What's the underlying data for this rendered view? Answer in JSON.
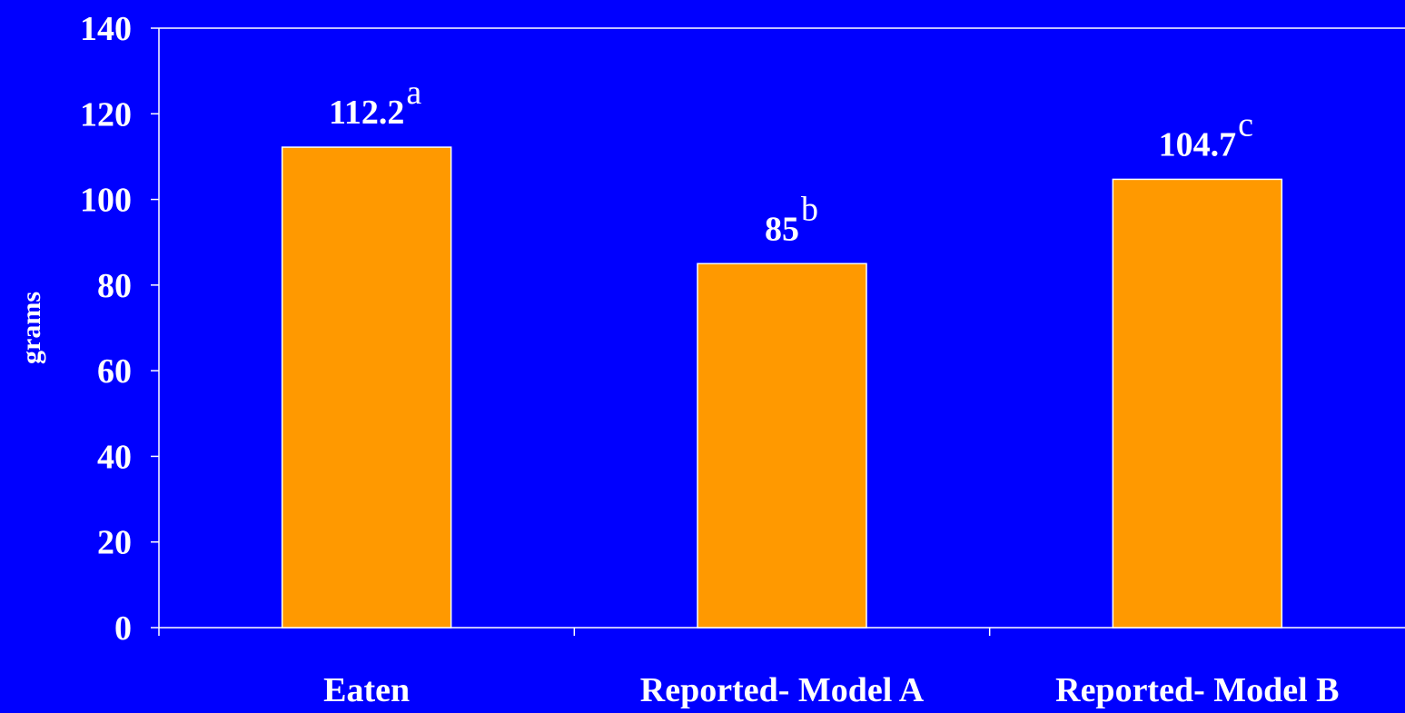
{
  "colors": {
    "background": "#0000FF",
    "bar_fill": "#FF9900",
    "bar_stroke": "#FFFFFF",
    "axis": "#FFFFFF",
    "text": "#FFFFFF"
  },
  "chart_data": {
    "type": "bar",
    "title": "",
    "xlabel": "",
    "ylabel": "grams",
    "ylim": [
      0,
      140
    ],
    "yticks": [
      0,
      20,
      40,
      60,
      80,
      100,
      120,
      140
    ],
    "grid": false,
    "legend": "none",
    "categories": [
      "Eaten",
      "Reported- Model A",
      "Reported- Model B"
    ],
    "series": [
      {
        "values": [
          112.2,
          85,
          104.7
        ]
      }
    ],
    "data_labels": [
      "112.2",
      "85",
      "104.7"
    ],
    "significance_letters": [
      "a",
      "b",
      "c"
    ]
  }
}
